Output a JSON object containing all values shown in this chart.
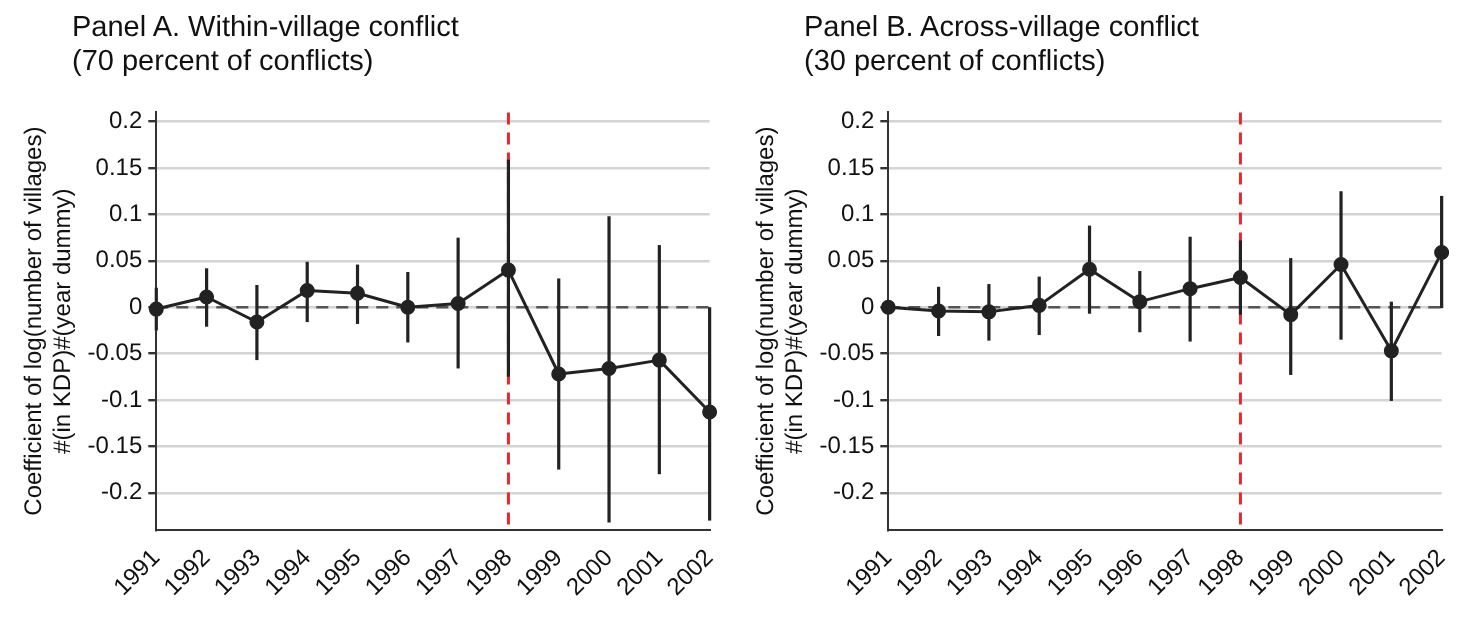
{
  "chart_data": [
    {
      "type": "line",
      "title": "Panel A. Within-village conflict",
      "subtitle": "(70 percent of conflicts)",
      "ylabel": "Coefficient of log(number of villages)\n#(in KDP)#(year dummy)",
      "categories": [
        "1991",
        "1992",
        "1993",
        "1994",
        "1995",
        "1996",
        "1997",
        "1998",
        "1999",
        "2000",
        "2001",
        "2002"
      ],
      "series": [
        {
          "color": "#222222",
          "values": [
            -0.002,
            0.011,
            -0.016,
            0.018,
            0.015,
            0,
            0.004,
            0.04,
            -0.072,
            -0.066,
            -0.057,
            -0.113
          ],
          "errors": [
            [
              -0.025,
              0.021
            ],
            [
              -0.021,
              0.042
            ],
            [
              -0.057,
              0.024
            ],
            [
              -0.016,
              0.049
            ],
            [
              -0.018,
              0.046
            ],
            [
              -0.038,
              0.038
            ],
            [
              -0.066,
              0.075
            ],
            [
              -0.075,
              0.159
            ],
            [
              -0.175,
              0.031
            ],
            [
              -0.232,
              0.098
            ],
            [
              -0.18,
              0.067
            ],
            [
              -0.23,
              0
            ]
          ]
        }
      ],
      "ylim": [
        -0.24,
        0.21
      ],
      "yticks": [
        0.2,
        0.15,
        0.1,
        0.05,
        0,
        -0.05,
        -0.1,
        -0.15,
        -0.2
      ],
      "grid": "y",
      "legend": false,
      "marker": "circle",
      "ref_lines": [
        {
          "axis": "y",
          "value": 0,
          "color": "#555555",
          "line_style": "dashed"
        },
        {
          "axis": "x",
          "value": "1998",
          "color": "#e8272b",
          "line_style": "dashed"
        }
      ]
    },
    {
      "type": "line",
      "title": "Panel B. Across-village conflict",
      "subtitle": "(30 percent of conflicts)",
      "ylabel": "Coefficient of log(number of villages)\n#(in KDP)#(year dummy)",
      "categories": [
        "1991",
        "1992",
        "1993",
        "1994",
        "1995",
        "1996",
        "1997",
        "1998",
        "1999",
        "2000",
        "2001",
        "2002"
      ],
      "series": [
        {
          "color": "#222222",
          "values": [
            0,
            -0.004,
            -0.005,
            0.002,
            0.041,
            0.006,
            0.02,
            0.032,
            -0.008,
            0.046,
            -0.047,
            0.059
          ],
          "errors": [
            null,
            [
              -0.031,
              0.022
            ],
            [
              -0.036,
              0.025
            ],
            [
              -0.03,
              0.033
            ],
            [
              -0.007,
              0.088
            ],
            [
              -0.027,
              0.039
            ],
            [
              -0.037,
              0.076
            ],
            [
              -0.008,
              0.072
            ],
            [
              -0.073,
              0.053
            ],
            [
              -0.035,
              0.125
            ],
            [
              -0.101,
              0.006
            ],
            [
              -0.001,
              0.12
            ]
          ]
        }
      ],
      "ylim": [
        -0.24,
        0.21
      ],
      "yticks": [
        0.2,
        0.15,
        0.1,
        0.05,
        0,
        -0.05,
        -0.1,
        -0.15,
        -0.2
      ],
      "grid": "y",
      "legend": false,
      "marker": "circle",
      "ref_lines": [
        {
          "axis": "y",
          "value": 0,
          "color": "#555555",
          "line_style": "dashed"
        },
        {
          "axis": "x",
          "value": "1998",
          "color": "#e8272b",
          "line_style": "dashed"
        }
      ]
    }
  ]
}
